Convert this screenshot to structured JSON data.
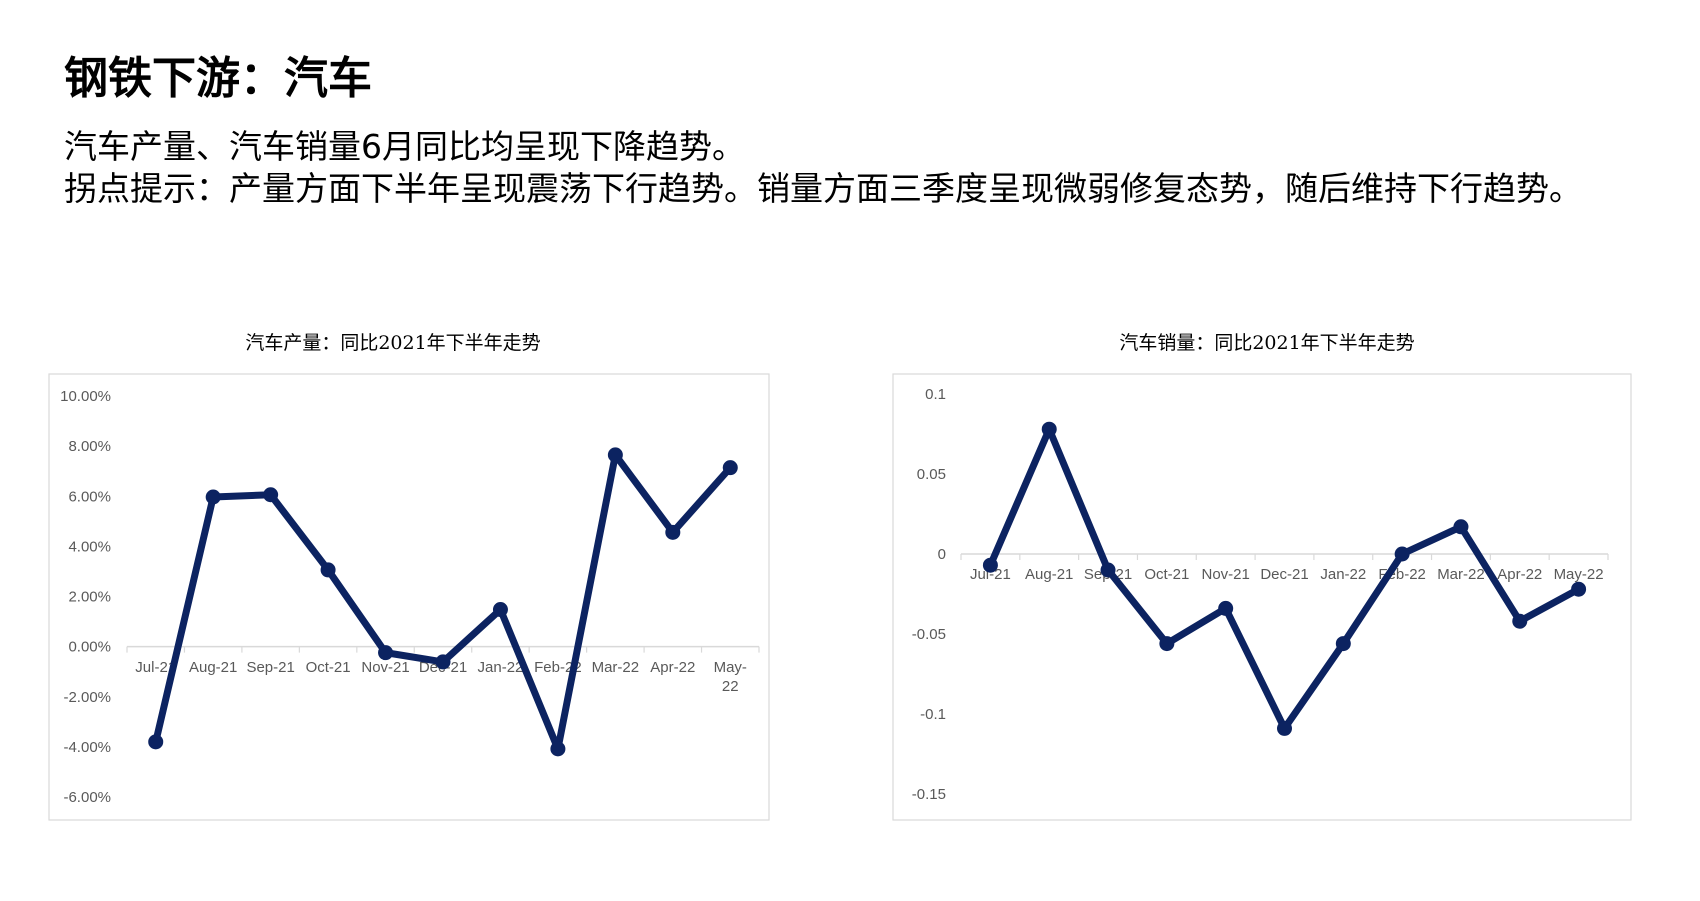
{
  "page": {
    "title": "钢铁下游：汽车",
    "lines": [
      "汽车产量、汽车销量6月同比均呈现下降趋势。",
      "拐点提示：产量方面下半年呈现震荡下行趋势。销量方面三季度呈现微弱修复态势，随后维持下行趋势。"
    ]
  },
  "colors": {
    "line": "#0c2361",
    "axis": "#d9d9d9",
    "tick_text": "#595959",
    "border": "#d9d9d9"
  },
  "chart_data": [
    {
      "type": "line",
      "title": "汽车产量：同比2021年下半年走势",
      "categories": [
        "Jul-21",
        "Aug-21",
        "Sep-21",
        "Oct-21",
        "Nov-21",
        "Dec-21",
        "Jan-22",
        "Feb-22",
        "Mar-22",
        "Apr-22",
        "May-22"
      ],
      "values": [
        -3.8,
        5.97,
        6.06,
        3.06,
        -0.24,
        -0.61,
        1.48,
        -4.08,
        7.65,
        4.56,
        7.14
      ],
      "yticks": [
        "10.00%",
        "8.00%",
        "6.00%",
        "4.00%",
        "2.00%",
        "0.00%",
        "-2.00%",
        "-4.00%",
        "-6.00%"
      ],
      "ytick_values": [
        10,
        8,
        6,
        4,
        2,
        0,
        -2,
        -4,
        -6
      ],
      "ylim": [
        -6,
        10
      ],
      "unit": "%",
      "grid": false,
      "legend": "none"
    },
    {
      "type": "line",
      "title": "汽车销量：同比2021年下半年走势",
      "categories": [
        "Jul-21",
        "Aug-21",
        "Sep-21",
        "Oct-21",
        "Nov-21",
        "Dec-21",
        "Jan-22",
        "Feb-22",
        "Mar-22",
        "Apr-22",
        "May-22"
      ],
      "values": [
        -0.007,
        0.078,
        -0.01,
        -0.056,
        -0.034,
        -0.109,
        -0.056,
        0.0,
        0.017,
        -0.042,
        -0.022
      ],
      "yticks": [
        "0.1",
        "0.05",
        "0",
        "-0.05",
        "-0.1",
        "-0.15"
      ],
      "ytick_values": [
        0.1,
        0.05,
        0,
        -0.05,
        -0.1,
        -0.15
      ],
      "ylim": [
        -0.15,
        0.1
      ],
      "grid": false,
      "legend": "none"
    }
  ]
}
